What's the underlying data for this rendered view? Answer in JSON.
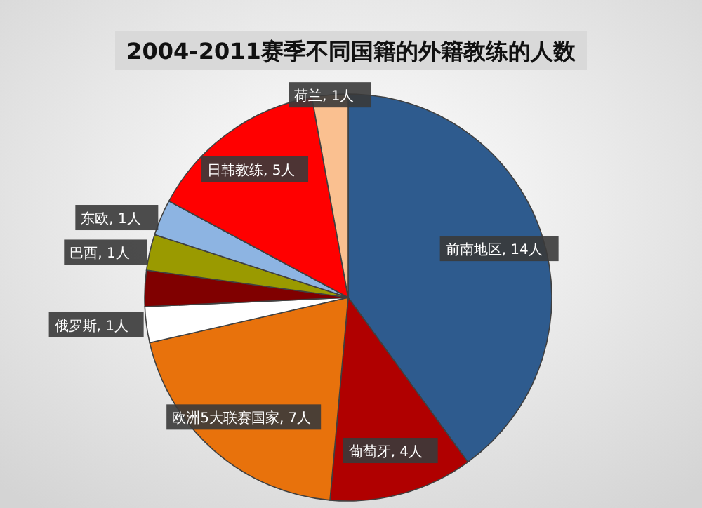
{
  "chart_data": {
    "type": "pie",
    "title": "2004-2011赛季不同国籍的外籍教练的人数",
    "categories": [
      "前南地区",
      "葡萄牙",
      "欧洲5大联赛国家",
      "俄罗斯",
      null,
      "巴西",
      "东欧",
      "日韩教练",
      "荷兰"
    ],
    "values": [
      14,
      4,
      7,
      1,
      1,
      1,
      1,
      5,
      1
    ],
    "value_labels": [
      ", 14人",
      ", 4人",
      ", 7人",
      ", 1人",
      null,
      ", 1人",
      ", 1人",
      ", 5人",
      ", 1人"
    ],
    "colors": [
      "#2e5b8e",
      "#b00000",
      "#e8720c",
      "#ffffff",
      "#800000",
      "#9a9a00",
      "#8db4e2",
      "#ff0000",
      "#fac090"
    ]
  }
}
